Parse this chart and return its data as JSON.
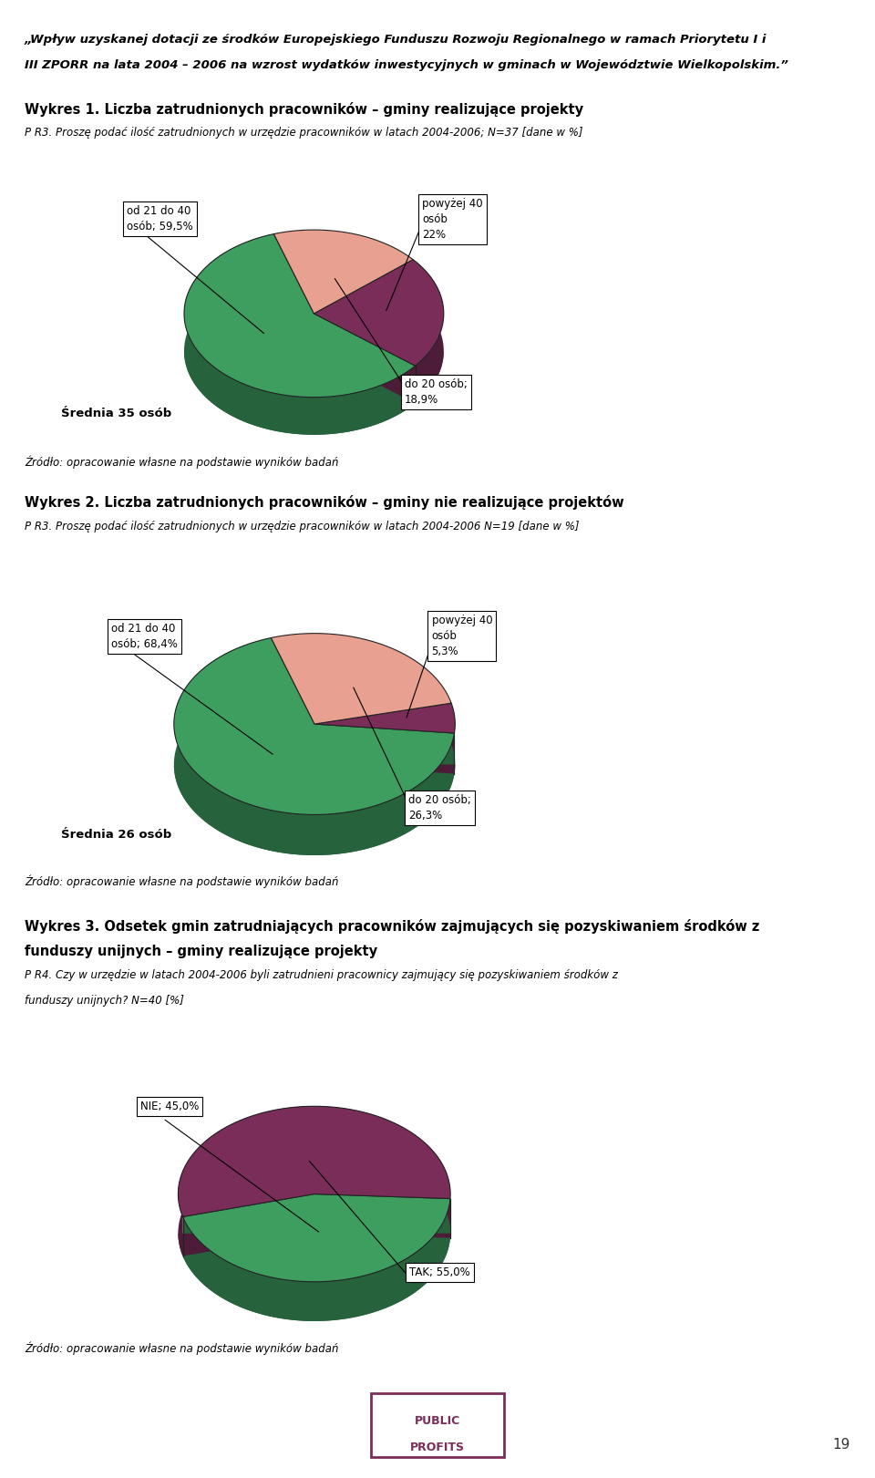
{
  "header_line1": "„Wpływ uzyskanej dotacji ze środków Europejskiego Funduszu Rozwoju Regionalnego w ramach Priorytetu I i",
  "header_line2": "III ZPORR na lata 2004 – 2006 na wzrost wydatków inwestycyjnych w gminach w Województwie Wielkopolskim.”",
  "chart1_title": "Wykres 1. Liczba zatrudnionych pracowników – gminy realizujące projekty",
  "chart1_subtitle": "P R3. Proszę podać ilość zatrudnionych w urzędzie pracowników w latach 2004-2006; N=37 [dane w %]",
  "chart1_values": [
    59.5,
    22.0,
    18.9
  ],
  "chart1_colors": [
    "#3d9e60",
    "#7b2d5a",
    "#e8a090"
  ],
  "chart1_srednia": "Średnia 35 osób",
  "chart1_source": "Źródło: opracowanie własne na podstawie wyników badań",
  "chart1_startangle": 108,
  "chart2_title": "Wykres 2. Liczba zatrudnionych pracowników – gminy nie realizujące projektów",
  "chart2_subtitle": "P R3. Proszę podać ilość zatrudnionych w urzędzie pracowników w latach 2004-2006 N=19 [dane w %]",
  "chart2_values": [
    68.4,
    5.3,
    26.3
  ],
  "chart2_colors": [
    "#3d9e60",
    "#7b2d5a",
    "#e8a090"
  ],
  "chart2_srednia": "Średnia 26 osób",
  "chart2_source": "Źródło: opracowanie własne na podstawie wyników badań",
  "chart2_startangle": 108,
  "chart3_title": "Wykres 3. Odsetek gmin zatrudniających pracowników zajmujących się pozyskiwaniem środków z",
  "chart3_title2": "funduszy unijnych – gminy realizujące projekty",
  "chart3_subtitle": "P R4. Czy w urzędzie w latach 2004-2006 byli zatrudnieni pracownicy zajmujący się pozyskiwaniem środków z",
  "chart3_subtitle2": "funduszy unijnych? N=40 [%]",
  "chart3_values": [
    45.0,
    55.0
  ],
  "chart3_colors": [
    "#3d9e60",
    "#7b2d5a"
  ],
  "chart3_source": "Źródło: opracowanie własne na podstawie wyników badań",
  "chart3_startangle": 195,
  "bg_color": "#ffffff",
  "separator_color": "#c0507a",
  "page_number": "19"
}
